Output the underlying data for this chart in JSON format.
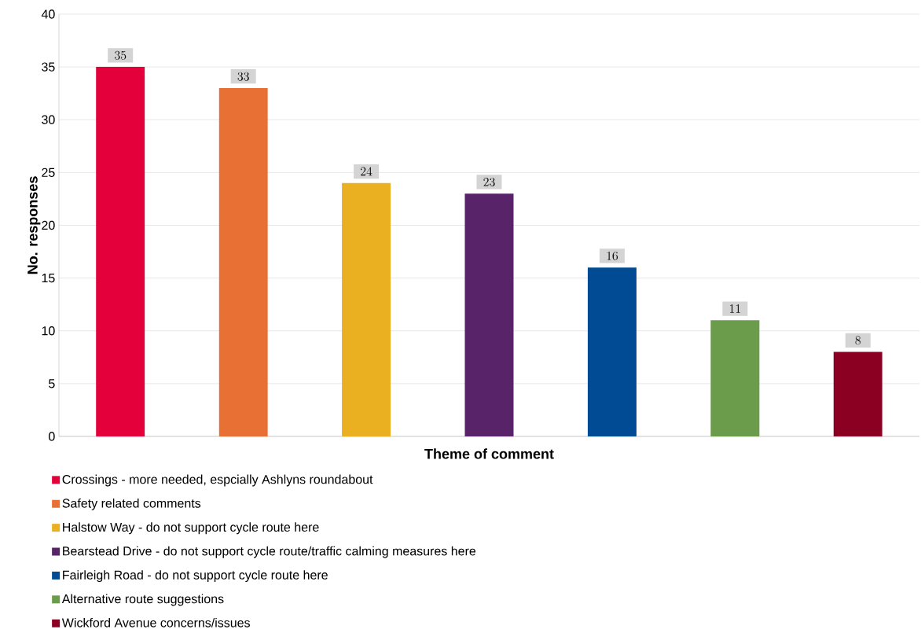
{
  "chart_data": {
    "type": "bar",
    "xlabel": "Theme of comment",
    "ylabel": "No. responses",
    "categories": [
      null,
      null,
      null,
      null,
      null,
      null,
      null
    ],
    "series": [
      {
        "name": "Crossings - more needed, espcially Ashlyns roundabout",
        "color": "#e4003a",
        "values": [
          35,
          null,
          null,
          null,
          null,
          null,
          null
        ]
      },
      {
        "name": "Safety related comments",
        "color": "#e87035",
        "values": [
          null,
          33,
          null,
          null,
          null,
          null,
          null
        ]
      },
      {
        "name": "Halstow Way - do not support cycle route here",
        "color": "#ebb022",
        "values": [
          null,
          null,
          24,
          null,
          null,
          null,
          null
        ]
      },
      {
        "name": "Bearstead Drive - do not support cycle route/traffic calming measures here",
        "color": "#582368",
        "values": [
          null,
          null,
          null,
          23,
          null,
          null,
          null
        ]
      },
      {
        "name": "Fairleigh Road - do not support cycle route here",
        "color": "#004b93",
        "values": [
          null,
          null,
          null,
          null,
          16,
          null,
          null
        ]
      },
      {
        "name": "Alternative route suggestions",
        "color": "#6a9c4c",
        "values": [
          null,
          null,
          null,
          null,
          null,
          11,
          null
        ]
      },
      {
        "name": "Wickford Avenue concerns/issues",
        "color": "#8b0022",
        "values": [
          null,
          null,
          null,
          null,
          null,
          null,
          8
        ]
      }
    ],
    "ylim": [
      0,
      40
    ],
    "yticks": [
      0,
      5,
      10,
      15,
      20,
      25,
      30,
      35,
      40
    ],
    "grid": "y",
    "legend": "bottom",
    "data_labels": true,
    "tick_labels": "y"
  }
}
